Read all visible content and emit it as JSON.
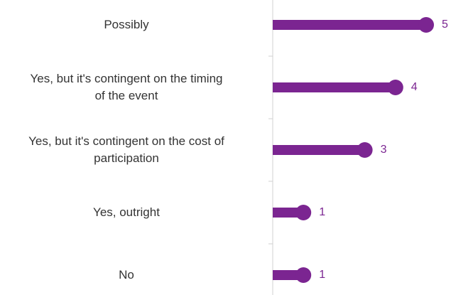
{
  "chart_data": {
    "type": "lollipop",
    "categories": [
      "Possibly",
      "Yes, but it's contingent on the timing\nof the event",
      "Yes, but it's contingent on the cost of\nparticipation",
      "Yes, outright",
      "No"
    ],
    "values": [
      5,
      4,
      3,
      1,
      1
    ],
    "color": "#7b2591"
  }
}
